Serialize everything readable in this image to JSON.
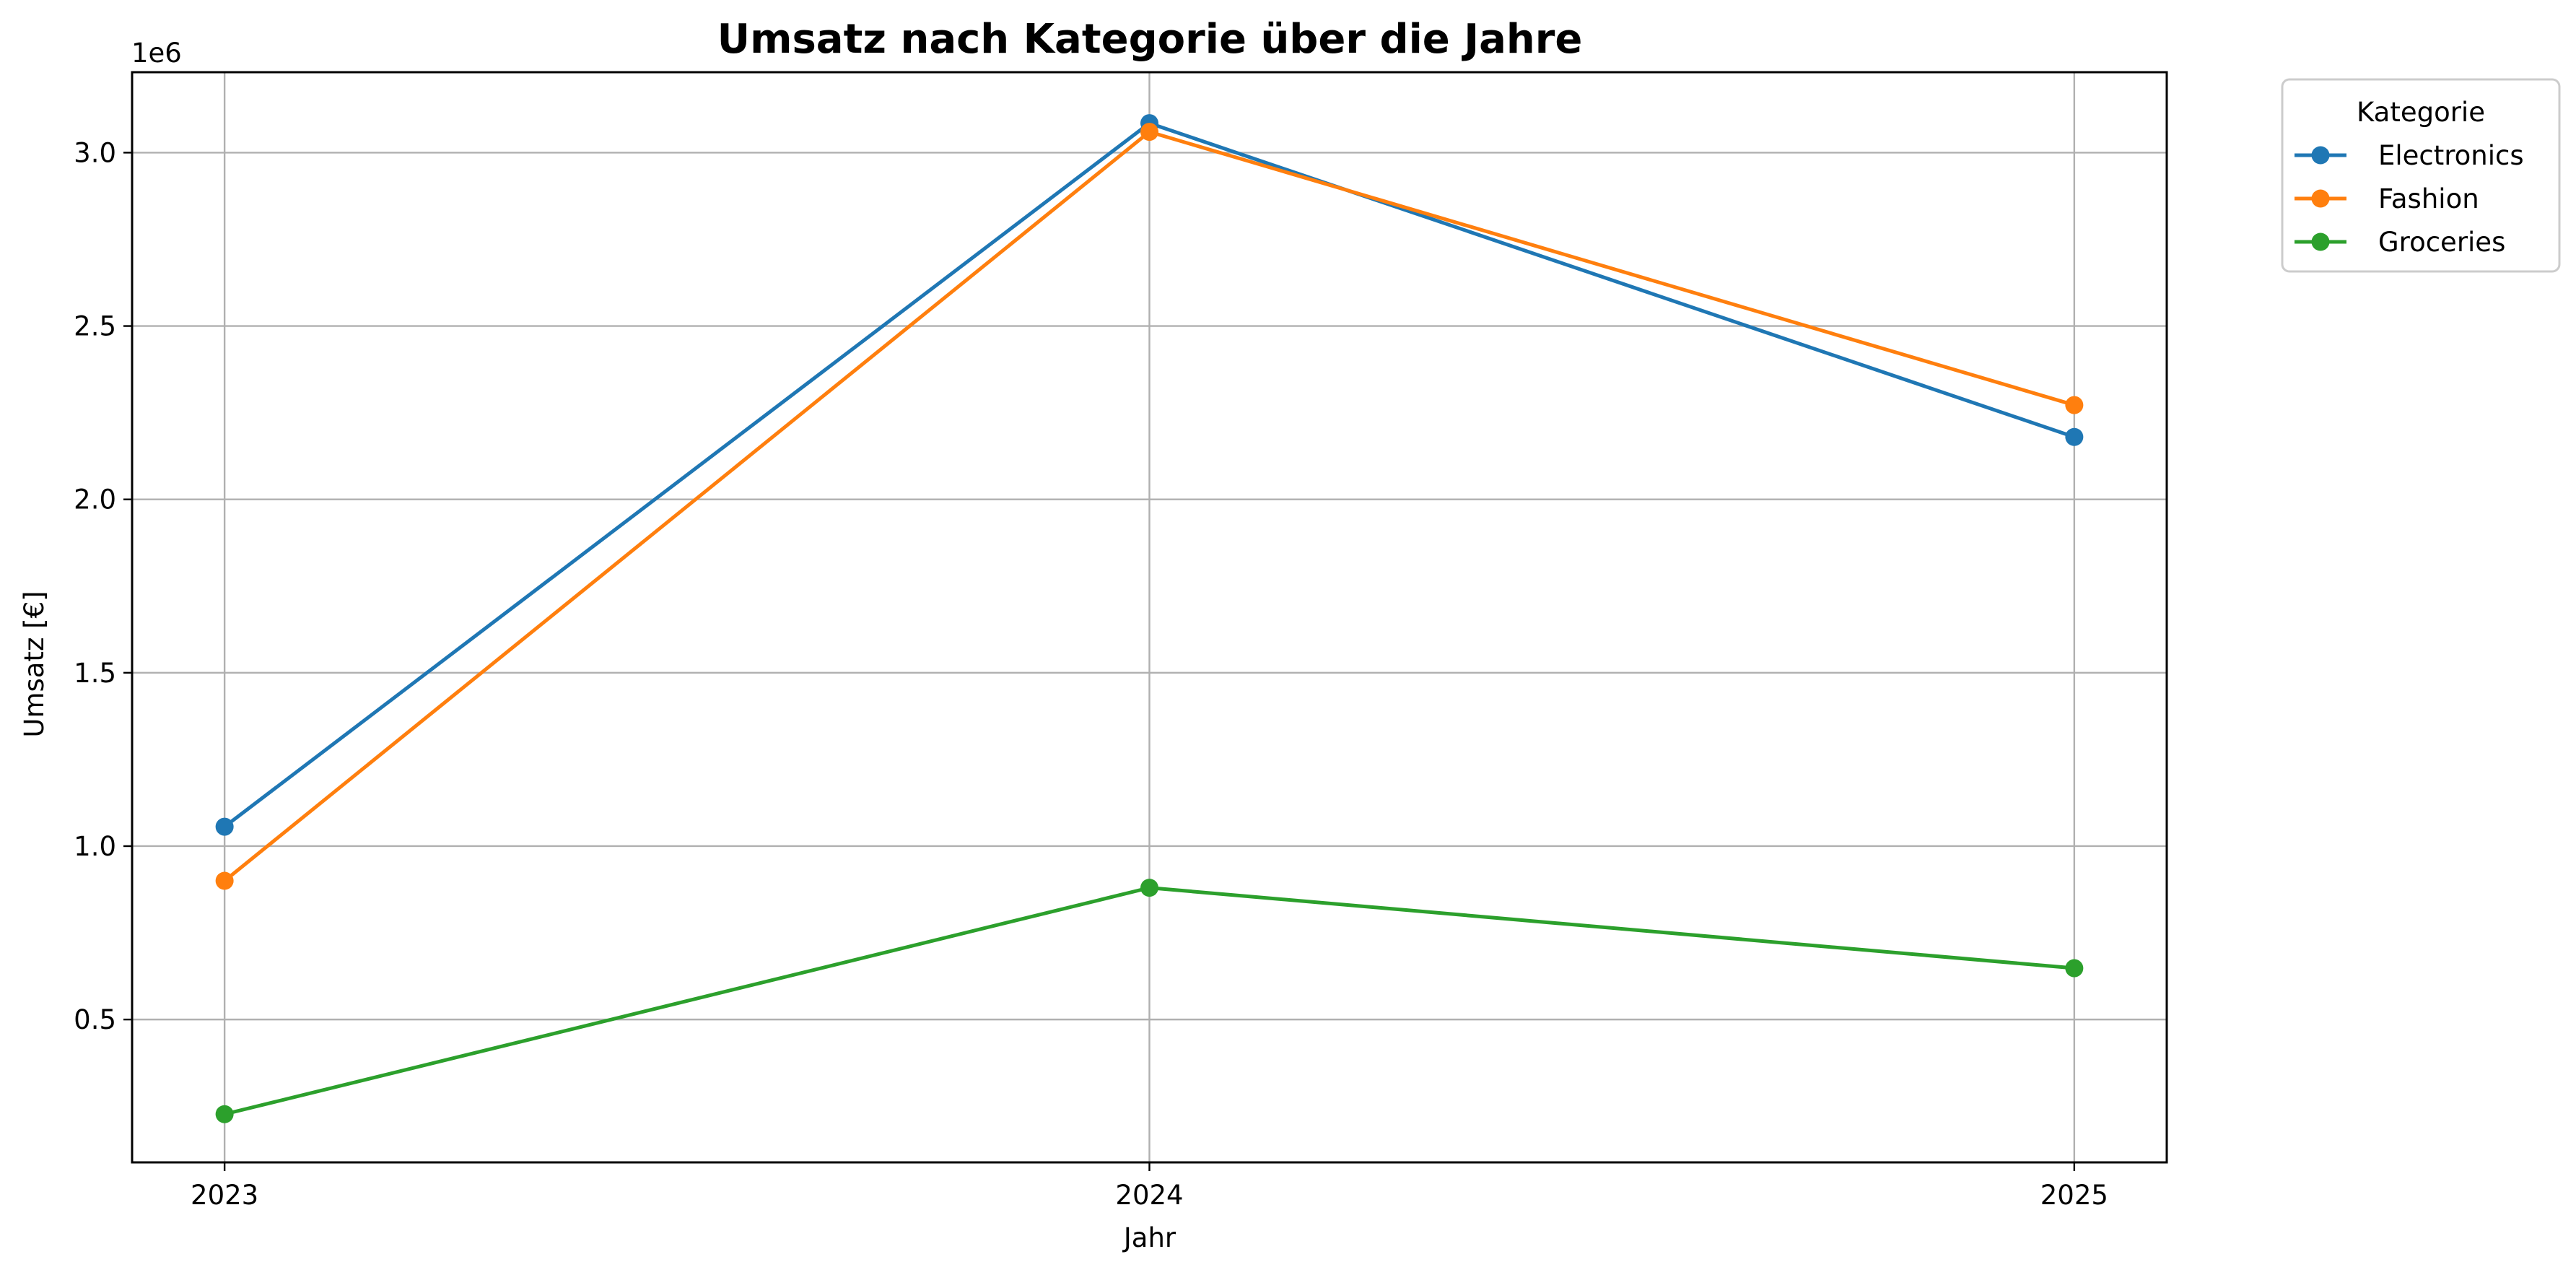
{
  "chart_data": {
    "type": "line",
    "title": "Umsatz nach Kategorie über die Jahre",
    "xlabel": "Jahr",
    "ylabel": "Umsatz [€]",
    "y_offset_label": "1e6",
    "y_scale": 1000000,
    "x": [
      2023,
      2024,
      2025
    ],
    "x_tick_labels": [
      "2023",
      "2024",
      "2025"
    ],
    "xlim": [
      2022.9,
      2025.1
    ],
    "ylim": [
      88000,
      3232000
    ],
    "y_ticks": [
      500000,
      1000000,
      1500000,
      2000000,
      2500000,
      3000000
    ],
    "y_tick_labels": [
      "0.5",
      "1.0",
      "1.5",
      "2.0",
      "2.5",
      "3.0"
    ],
    "grid": true,
    "legend": {
      "title": "Kategorie",
      "placement": "outside-top-right"
    },
    "series": [
      {
        "name": "Electronics",
        "color": "#1f77b4",
        "values": [
          1056000,
          3085000,
          2180000
        ]
      },
      {
        "name": "Fashion",
        "color": "#ff7f0e",
        "values": [
          900000,
          3060000,
          2272000
        ]
      },
      {
        "name": "Groceries",
        "color": "#2ca02c",
        "values": [
          227000,
          880000,
          648000
        ]
      }
    ]
  }
}
